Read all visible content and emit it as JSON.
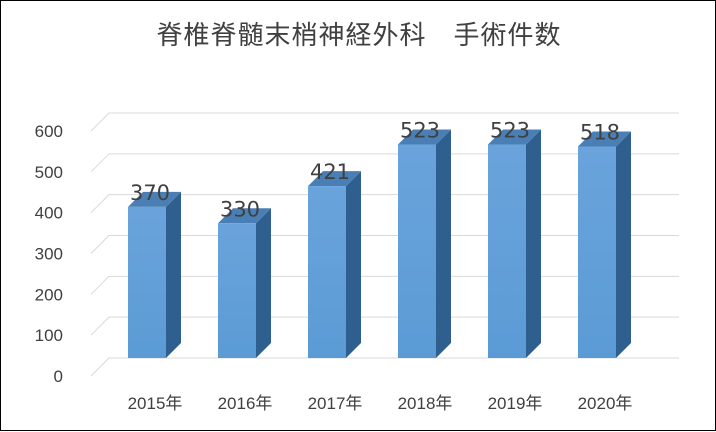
{
  "chart_data": {
    "type": "bar",
    "title": "脊椎脊髄末梢神経外科　手術件数",
    "categories": [
      "2015年",
      "2016年",
      "2017年",
      "2018年",
      "2019年",
      "2020年"
    ],
    "values": [
      370,
      330,
      421,
      523,
      523,
      518
    ],
    "data_labels": [
      "370",
      "330",
      "421",
      "523",
      "523",
      "518"
    ],
    "yticks": [
      "0",
      "100",
      "200",
      "300",
      "400",
      "500",
      "600"
    ],
    "ylim": [
      0,
      600
    ],
    "style": "3d-column",
    "grid": true,
    "legend": "none",
    "colors": {
      "front": "#5b9bd5",
      "side": "#2e5f8e",
      "top": "#4a7fb5",
      "grid": "#d9d9d9",
      "text": "#404040"
    }
  }
}
